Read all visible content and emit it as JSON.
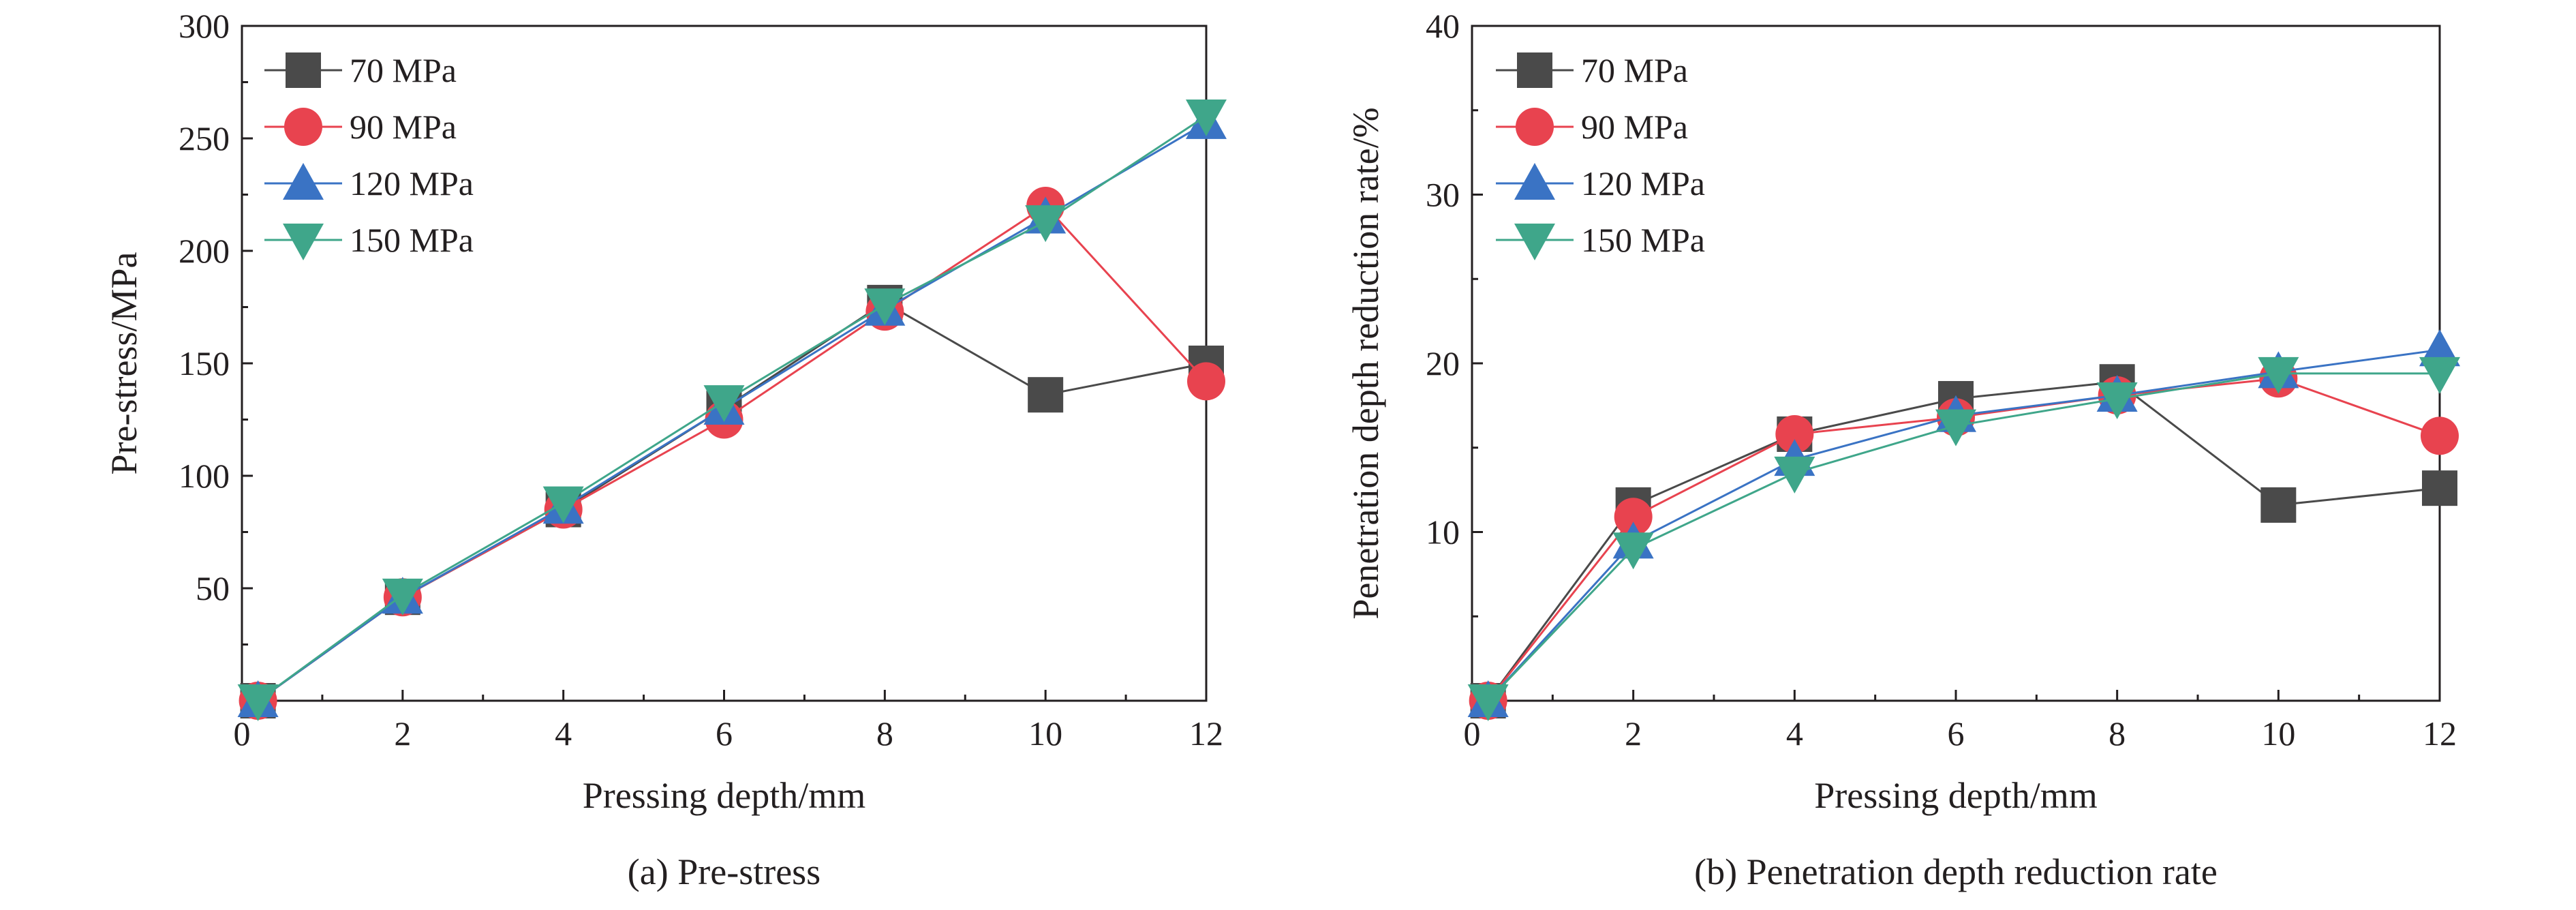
{
  "chart_data": [
    {
      "type": "line",
      "caption": "(a) Pre-stress",
      "xlabel": "Pressing depth/mm",
      "ylabel": "Pre-stress/MPa",
      "xlim": [
        0,
        12
      ],
      "ylim": [
        0,
        300
      ],
      "xticks": [
        0,
        2,
        4,
        6,
        8,
        10,
        12
      ],
      "yticks": [
        50,
        100,
        150,
        200,
        250,
        300
      ],
      "x": [
        0.2,
        2,
        4,
        6,
        8,
        10,
        12
      ],
      "grid": false,
      "legend_position": "top-left",
      "series": [
        {
          "name": "70 MPa",
          "marker": "square",
          "color": "#4a4a4a",
          "values": [
            0,
            46,
            85,
            130,
            177,
            136,
            150
          ]
        },
        {
          "name": "90 MPa",
          "marker": "circle",
          "color": "#e8434f",
          "values": [
            0,
            46,
            85,
            125,
            173,
            220,
            142
          ]
        },
        {
          "name": "120 MPa",
          "marker": "triangle-up",
          "color": "#3a73c4",
          "values": [
            0,
            46,
            86,
            130,
            174,
            215,
            257
          ]
        },
        {
          "name": "150 MPa",
          "marker": "triangle-down",
          "color": "#3fa68a",
          "values": [
            0,
            47,
            88,
            133,
            176,
            213,
            260
          ]
        }
      ]
    },
    {
      "type": "line",
      "caption": "(b) Penetration depth reduction rate",
      "xlabel": "Pressing depth/mm",
      "ylabel": "Penetration depth reduction rate/%",
      "xlim": [
        0,
        12
      ],
      "ylim": [
        0,
        40
      ],
      "xticks": [
        0,
        2,
        4,
        6,
        8,
        10,
        12
      ],
      "yticks": [
        10,
        20,
        30,
        40
      ],
      "x": [
        0.2,
        2,
        4,
        6,
        8,
        10,
        12
      ],
      "grid": false,
      "legend_position": "top-left",
      "series": [
        {
          "name": "70 MPa",
          "marker": "square",
          "color": "#4a4a4a",
          "values": [
            0,
            11.6,
            15.8,
            17.9,
            18.9,
            11.6,
            12.6
          ]
        },
        {
          "name": "90 MPa",
          "marker": "circle",
          "color": "#e8434f",
          "values": [
            0,
            10.9,
            15.8,
            16.8,
            18.1,
            19.1,
            15.7
          ]
        },
        {
          "name": "120 MPa",
          "marker": "triangle-up",
          "color": "#3a73c4",
          "values": [
            0,
            9.4,
            14.3,
            16.9,
            18.1,
            19.5,
            20.8
          ]
        },
        {
          "name": "150 MPa",
          "marker": "triangle-down",
          "color": "#3fa68a",
          "values": [
            0,
            9.0,
            13.5,
            16.3,
            17.9,
            19.4,
            19.4
          ]
        }
      ]
    }
  ]
}
